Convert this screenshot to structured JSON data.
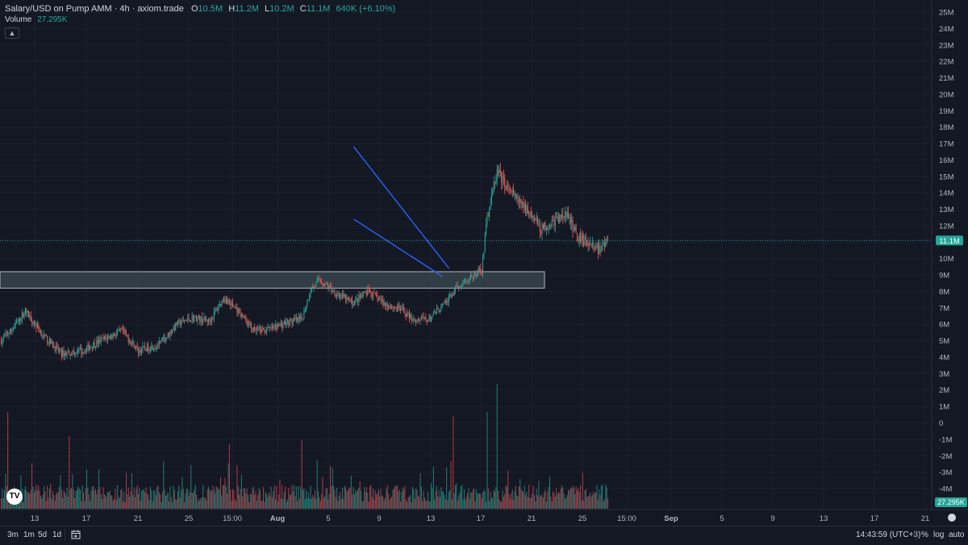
{
  "legend": {
    "title": "Salary/USD on Pump AMM · 4h · axiom.trade",
    "o_label": "O",
    "o_value": "10.5M",
    "h_label": "H",
    "h_value": "11.2M",
    "l_label": "L",
    "l_value": "10.2M",
    "c_label": "C",
    "c_value": "11.1M",
    "change": "640K (+6.10%)",
    "volume_label": "Volume",
    "volume_value": "27.295K",
    "collapse_icon": "chevron-up-icon"
  },
  "price_axis": {
    "ticks": [
      "25M",
      "24M",
      "23M",
      "22M",
      "21M",
      "20M",
      "19M",
      "18M",
      "17M",
      "16M",
      "15M",
      "14M",
      "13M",
      "12M",
      "11M",
      "10M",
      "9M",
      "8M",
      "7M",
      "6M",
      "5M",
      "4M",
      "3M",
      "2M",
      "1M",
      "0",
      "-1M",
      "-2M",
      "-3M",
      "-4M"
    ],
    "last_price_label": "11.1M",
    "last_volume_label": "27.295K"
  },
  "time_axis": {
    "ticks": [
      {
        "label": "13",
        "bold": false
      },
      {
        "label": "17",
        "bold": false
      },
      {
        "label": "21",
        "bold": false
      },
      {
        "label": "25",
        "bold": false
      },
      {
        "label": "15:00",
        "bold": false
      },
      {
        "label": "Aug",
        "bold": true
      },
      {
        "label": "5",
        "bold": false
      },
      {
        "label": "9",
        "bold": false
      },
      {
        "label": "13",
        "bold": false
      },
      {
        "label": "17",
        "bold": false
      },
      {
        "label": "21",
        "bold": false
      },
      {
        "label": "25",
        "bold": false
      },
      {
        "label": "15:00",
        "bold": false
      },
      {
        "label": "Sep",
        "bold": true
      },
      {
        "label": "5",
        "bold": false
      },
      {
        "label": "9",
        "bold": false
      },
      {
        "label": "13",
        "bold": false
      },
      {
        "label": "17",
        "bold": false
      },
      {
        "label": "21",
        "bold": false
      }
    ]
  },
  "toolbar": {
    "timeframes": [
      "3m",
      "1m",
      "5d",
      "1d"
    ],
    "calendar_icon": "calendar-range-icon",
    "clock": "14:43:59 (UTC+3)",
    "percent_label": "%",
    "log_label": "log",
    "auto_label": "auto"
  },
  "colors": {
    "background": "#141823",
    "up": "#26a69a",
    "down": "#ef5350",
    "vol_up": "#1f7f74",
    "vol_down": "#b23a48",
    "trendline": "#2962ff",
    "zone_fill": "#3a4a52",
    "zone_border": "#b2b5be",
    "last_price_badge": "#26a69a"
  },
  "chart_data": {
    "type": "candlestick",
    "timeframe": "4h",
    "y_unit": "USD market cap",
    "ylim": [
      -4000000,
      25000000
    ],
    "anchors": [
      [
        0,
        5.0
      ],
      [
        10,
        5.7
      ],
      [
        22,
        6.8
      ],
      [
        40,
        5.2
      ],
      [
        55,
        4.2
      ],
      [
        75,
        4.4
      ],
      [
        90,
        5.0
      ],
      [
        110,
        5.6
      ],
      [
        125,
        4.4
      ],
      [
        145,
        4.8
      ],
      [
        160,
        6.0
      ],
      [
        175,
        6.4
      ],
      [
        190,
        6.2
      ],
      [
        203,
        7.6
      ],
      [
        218,
        6.7
      ],
      [
        230,
        5.6
      ],
      [
        245,
        5.7
      ],
      [
        260,
        6.1
      ],
      [
        274,
        6.3
      ],
      [
        282,
        8.1
      ],
      [
        290,
        8.7
      ],
      [
        305,
        7.9
      ],
      [
        320,
        7.3
      ],
      [
        335,
        8.0
      ],
      [
        350,
        7.2
      ],
      [
        365,
        6.9
      ],
      [
        375,
        6.3
      ],
      [
        390,
        6.3
      ],
      [
        405,
        7.3
      ],
      [
        420,
        8.6
      ],
      [
        430,
        8.9
      ],
      [
        438,
        9.4
      ],
      [
        443,
        12.5
      ],
      [
        452,
        15.3
      ],
      [
        462,
        14.2
      ],
      [
        472,
        13.4
      ],
      [
        482,
        12.8
      ],
      [
        492,
        11.8
      ],
      [
        505,
        12.3
      ],
      [
        515,
        12.7
      ],
      [
        525,
        11.4
      ],
      [
        535,
        11.0
      ],
      [
        545,
        10.5
      ],
      [
        553,
        11.1
      ]
    ],
    "anchor_x_meaning": "approximate bar index (4h candles)",
    "anchor_y_unit": "millions USD",
    "annotations": {
      "support_zone": [
        8200000,
        9200000
      ],
      "falling_wedge_upper": [
        [
          7.0,
          16.8
        ],
        [
          14.5,
          9.4
        ]
      ],
      "falling_wedge_lower": [
        [
          7.0,
          12.4
        ],
        [
          14.0,
          8.9
        ]
      ],
      "line_points_unit": "[day of August, millions USD]"
    },
    "last_price": 11100000,
    "last_volume": 27295
  }
}
